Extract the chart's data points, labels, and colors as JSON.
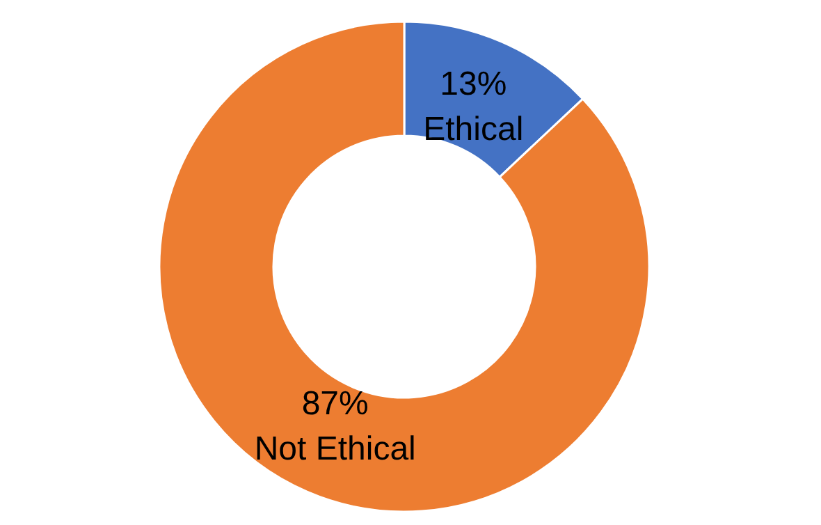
{
  "chart_data": {
    "type": "donut",
    "categories": [
      "Ethical",
      "Not Ethical"
    ],
    "values": [
      13,
      87
    ],
    "colors": [
      "#4472c4",
      "#ed7d31"
    ],
    "value_labels": [
      "13%",
      "87%"
    ]
  }
}
